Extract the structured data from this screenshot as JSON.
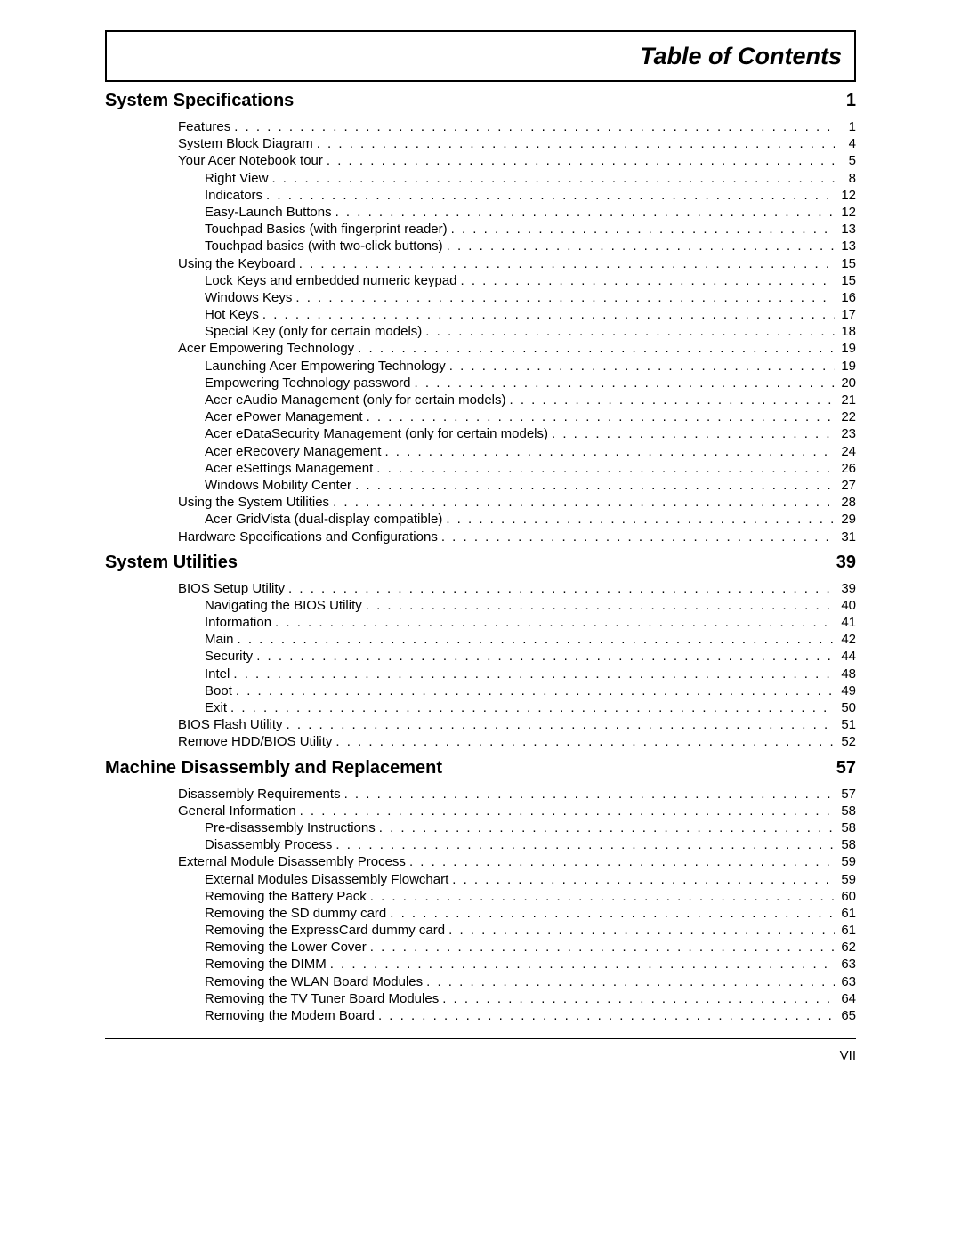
{
  "title": "Table of Contents",
  "page_number": "VII",
  "sections": [
    {
      "title": "System Specifications",
      "page": "1",
      "entries": [
        {
          "level": 1,
          "label": "Features",
          "page": "1"
        },
        {
          "level": 1,
          "label": "System Block Diagram",
          "page": "4"
        },
        {
          "level": 1,
          "label": "Your Acer Notebook tour",
          "page": "5"
        },
        {
          "level": 2,
          "label": "Right View",
          "page": "8"
        },
        {
          "level": 2,
          "label": "Indicators",
          "page": "12"
        },
        {
          "level": 2,
          "label": "Easy-Launch Buttons",
          "page": "12"
        },
        {
          "level": 2,
          "label": "Touchpad Basics (with fingerprint reader)",
          "page": "13"
        },
        {
          "level": 2,
          "label": "Touchpad basics (with two-click buttons)",
          "page": "13"
        },
        {
          "level": 1,
          "label": "Using the Keyboard",
          "page": "15"
        },
        {
          "level": 2,
          "label": "Lock Keys and embedded numeric keypad",
          "page": "15"
        },
        {
          "level": 2,
          "label": "Windows Keys",
          "page": "16"
        },
        {
          "level": 2,
          "label": "Hot Keys",
          "page": "17"
        },
        {
          "level": 2,
          "label": "Special Key (only for certain models)",
          "page": "18"
        },
        {
          "level": 1,
          "label": "Acer Empowering Technology",
          "page": "19"
        },
        {
          "level": 2,
          "label": "Launching Acer Empowering Technology",
          "page": "19"
        },
        {
          "level": 2,
          "label": "Empowering Technology password",
          "page": "20"
        },
        {
          "level": 2,
          "label": "Acer eAudio Management (only for certain models)",
          "page": "21"
        },
        {
          "level": 2,
          "label": "Acer ePower Management",
          "page": "22"
        },
        {
          "level": 2,
          "label": "Acer eDataSecurity Management (only for certain models)",
          "page": "23"
        },
        {
          "level": 2,
          "label": "Acer eRecovery Management",
          "page": "24"
        },
        {
          "level": 2,
          "label": "Acer eSettings Management",
          "page": "26"
        },
        {
          "level": 2,
          "label": "Windows Mobility Center",
          "page": "27"
        },
        {
          "level": 1,
          "label": "Using the System Utilities",
          "page": "28"
        },
        {
          "level": 2,
          "label": "Acer GridVista (dual-display compatible)",
          "page": "29"
        },
        {
          "level": 1,
          "label": "Hardware Specifications and Configurations",
          "page": "31"
        }
      ]
    },
    {
      "title": "System Utilities",
      "page": "39",
      "entries": [
        {
          "level": 1,
          "label": "BIOS Setup Utility",
          "page": "39"
        },
        {
          "level": 2,
          "label": "Navigating the BIOS Utility",
          "page": "40"
        },
        {
          "level": 2,
          "label": "Information",
          "page": "41"
        },
        {
          "level": 2,
          "label": "Main",
          "page": "42"
        },
        {
          "level": 2,
          "label": "Security",
          "page": "44"
        },
        {
          "level": 2,
          "label": "Intel",
          "page": "48"
        },
        {
          "level": 2,
          "label": "Boot",
          "page": "49"
        },
        {
          "level": 2,
          "label": "Exit",
          "page": "50"
        },
        {
          "level": 1,
          "label": "BIOS Flash Utility",
          "page": "51"
        },
        {
          "level": 1,
          "label": "Remove HDD/BIOS Utility",
          "page": "52"
        }
      ]
    },
    {
      "title": "Machine Disassembly and Replacement",
      "page": "57",
      "entries": [
        {
          "level": 1,
          "label": "Disassembly Requirements",
          "page": "57"
        },
        {
          "level": 1,
          "label": "General Information",
          "page": "58"
        },
        {
          "level": 2,
          "label": "Pre-disassembly Instructions",
          "page": "58"
        },
        {
          "level": 2,
          "label": "Disassembly Process",
          "page": "58"
        },
        {
          "level": 1,
          "label": "External Module Disassembly Process",
          "page": "59"
        },
        {
          "level": 2,
          "label": "External Modules Disassembly Flowchart",
          "page": "59"
        },
        {
          "level": 2,
          "label": "Removing the Battery Pack",
          "page": "60"
        },
        {
          "level": 2,
          "label": "Removing the SD dummy card",
          "page": "61"
        },
        {
          "level": 2,
          "label": "Removing the ExpressCard dummy card",
          "page": "61"
        },
        {
          "level": 2,
          "label": "Removing the Lower Cover",
          "page": "62"
        },
        {
          "level": 2,
          "label": "Removing the DIMM",
          "page": "63"
        },
        {
          "level": 2,
          "label": "Removing the WLAN Board Modules",
          "page": "63"
        },
        {
          "level": 2,
          "label": "Removing the TV Tuner Board Modules",
          "page": "64"
        },
        {
          "level": 2,
          "label": "Removing the Modem Board",
          "page": "65"
        }
      ]
    }
  ]
}
